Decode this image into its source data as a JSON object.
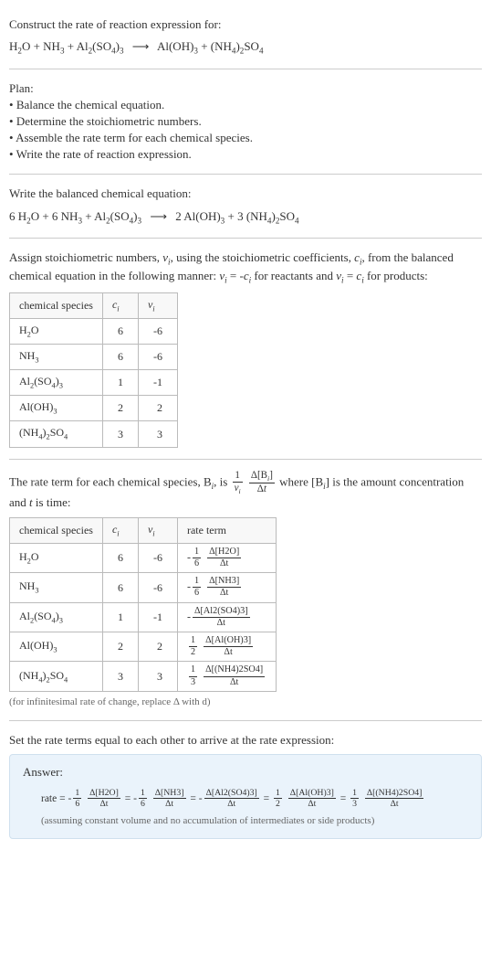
{
  "header": {
    "prompt": "Construct the rate of reaction expression for:"
  },
  "reaction": {
    "lhs": [
      {
        "base": "H",
        "sub": "2"
      },
      {
        "base": "O"
      },
      " + ",
      {
        "base": "NH",
        "sub": "3"
      },
      " + ",
      {
        "base": "Al",
        "sub": "2"
      },
      "(",
      {
        "base": "SO",
        "sub": "4"
      },
      ")",
      {
        "sub": "3"
      }
    ],
    "rhs": [
      {
        "base": "Al(OH)",
        "sub": "3"
      },
      " + ",
      "(",
      {
        "base": "NH",
        "sub": "4"
      },
      ")",
      {
        "sub": "2"
      },
      {
        "base": "SO",
        "sub": "4"
      }
    ]
  },
  "plan": {
    "title": "Plan:",
    "steps": [
      "Balance the chemical equation.",
      "Determine the stoichiometric numbers.",
      "Assemble the rate term for each chemical species.",
      "Write the rate of reaction expression."
    ]
  },
  "balanced": {
    "label": "Write the balanced chemical equation:",
    "coeffs_lhs": [
      "6",
      "6",
      ""
    ],
    "coeffs_rhs": [
      "2",
      "3"
    ]
  },
  "stoich": {
    "intro_a": "Assign stoichiometric numbers, ",
    "intro_b": ", using the stoichiometric coefficients, ",
    "intro_c": ", from the balanced chemical equation in the following manner: ",
    "intro_d": " for reactants and ",
    "intro_e": " for products:",
    "headers": [
      "chemical species",
      "cᵢ",
      "νᵢ"
    ],
    "rows": [
      {
        "species": "H₂O",
        "c": "6",
        "v": "-6"
      },
      {
        "species": "NH₃",
        "c": "6",
        "v": "-6"
      },
      {
        "species": "Al₂(SO₄)₃",
        "c": "1",
        "v": "-1"
      },
      {
        "species": "Al(OH)₃",
        "c": "2",
        "v": "2"
      },
      {
        "species": "(NH₄)₂SO₄",
        "c": "3",
        "v": "3"
      }
    ]
  },
  "rateterm": {
    "intro_a": "The rate term for each chemical species, B",
    "intro_b": ", is ",
    "intro_c": " where [B",
    "intro_d": "] is the amount concentration and ",
    "intro_e": " is time:",
    "headers": [
      "chemical species",
      "cᵢ",
      "νᵢ",
      "rate term"
    ],
    "rows": [
      {
        "species": "H₂O",
        "c": "6",
        "v": "-6",
        "f_num": "1",
        "f_den": "6",
        "sign": "-",
        "delta": "Δ[H2O]"
      },
      {
        "species": "NH₃",
        "c": "6",
        "v": "-6",
        "f_num": "1",
        "f_den": "6",
        "sign": "-",
        "delta": "Δ[NH3]"
      },
      {
        "species": "Al₂(SO₄)₃",
        "c": "1",
        "v": "-1",
        "f_num": "",
        "f_den": "",
        "sign": "-",
        "delta": "Δ[Al2(SO4)3]"
      },
      {
        "species": "Al(OH)₃",
        "c": "2",
        "v": "2",
        "f_num": "1",
        "f_den": "2",
        "sign": "",
        "delta": "Δ[Al(OH)3]"
      },
      {
        "species": "(NH₄)₂SO₄",
        "c": "3",
        "v": "3",
        "f_num": "1",
        "f_den": "3",
        "sign": "",
        "delta": "Δ[(NH4)2SO4]"
      }
    ],
    "footnote": "(for infinitesimal rate of change, replace Δ with d)"
  },
  "final": {
    "label": "Set the rate terms equal to each other to arrive at the rate expression:",
    "answer_title": "Answer:",
    "rate_prefix": "rate = ",
    "terms": [
      {
        "sign": "-",
        "num": "1",
        "den": "6",
        "delta": "Δ[H2O]"
      },
      {
        "sign": "-",
        "num": "1",
        "den": "6",
        "delta": "Δ[NH3]"
      },
      {
        "sign": "-",
        "num": "",
        "den": "",
        "delta": "Δ[Al2(SO4)3]"
      },
      {
        "sign": "",
        "num": "1",
        "den": "2",
        "delta": "Δ[Al(OH)3]"
      },
      {
        "sign": "",
        "num": "1",
        "den": "3",
        "delta": "Δ[(NH4)2SO4]"
      }
    ],
    "note": "(assuming constant volume and no accumulation of intermediates or side products)"
  },
  "symbols": {
    "dt": "Δt",
    "nu_i": "νᵢ",
    "c_i": "cᵢ",
    "t": "t"
  },
  "colors": {
    "text": "#333333",
    "rule": "#cccccc",
    "table_border": "#bbbbbb",
    "answer_bg": "#eaf3fb",
    "answer_border": "#cfe0ee",
    "muted": "#666666"
  }
}
